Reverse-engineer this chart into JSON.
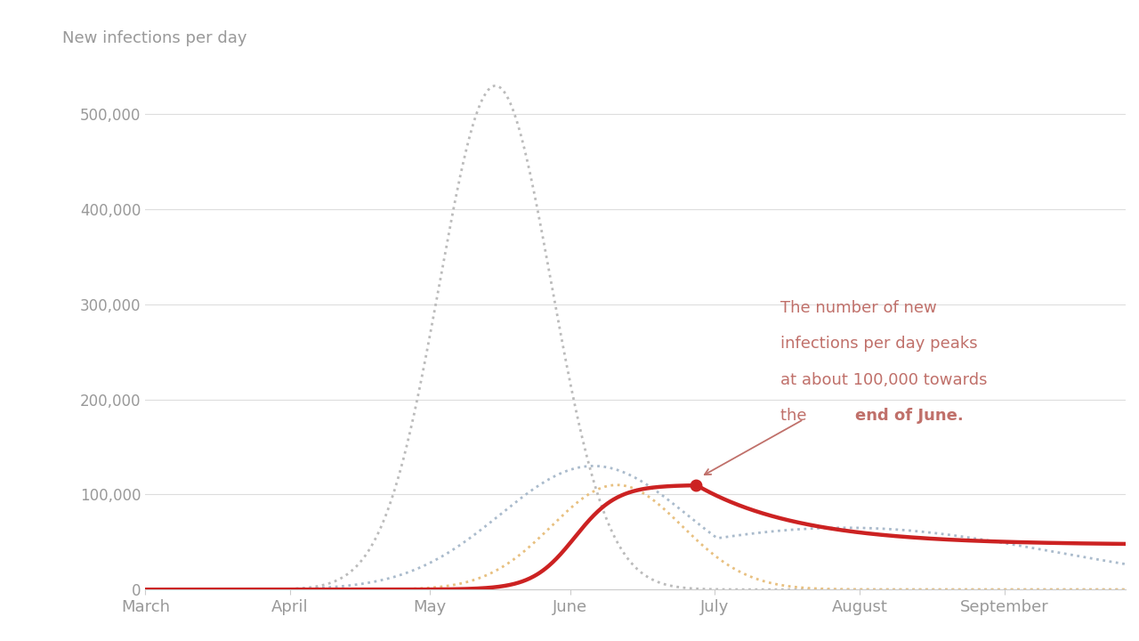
{
  "title": "New infections per day",
  "background_color": "#ffffff",
  "x_tick_labels": [
    "March",
    "April",
    "May",
    "June",
    "July",
    "August",
    "September"
  ],
  "yticks": [
    0,
    100000,
    200000,
    300000,
    400000,
    500000
  ],
  "ytick_labels": [
    "0",
    "100,000",
    "200,000",
    "300,000",
    "400,000",
    "500,000"
  ],
  "ylim": [
    0,
    560000
  ],
  "xlim": [
    0,
    210
  ],
  "annotation_color": "#c0706a",
  "red_line_color": "#cc2222",
  "gray_dotted_color": "#bbbbbb",
  "blue_dotted_color": "#aabbcc",
  "orange_dotted_color": "#e8c080",
  "grid_color": "#dddddd",
  "tick_color": "#999999",
  "month_positions": [
    0,
    31,
    61,
    91,
    122,
    153,
    184
  ]
}
